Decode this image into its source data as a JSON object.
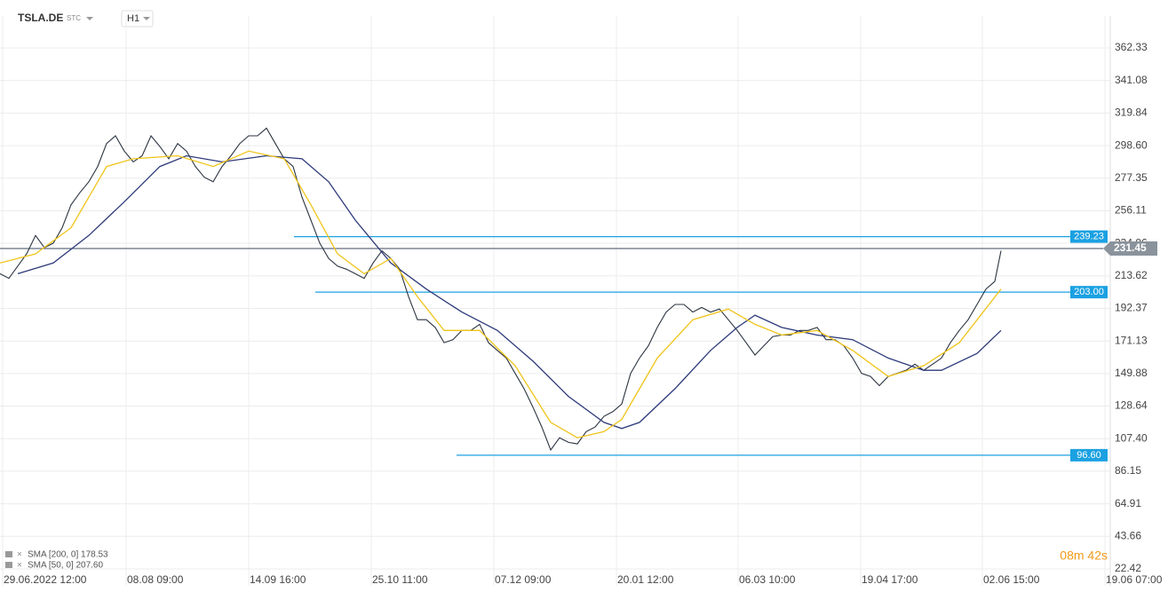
{
  "chart_data": {
    "type": "line",
    "symbol": "TSLA.DE",
    "market": "STC",
    "interval": "H1",
    "timer": "08m 42s",
    "xlim": [
      0,
      125
    ],
    "xticks": [
      {
        "value": 0.3,
        "label": "29.06.2022 12:00"
      },
      {
        "value": 14.2,
        "label": "08.08 09:00"
      },
      {
        "value": 28,
        "label": "14.09 16:00"
      },
      {
        "value": 41.8,
        "label": "25.10 11:00"
      },
      {
        "value": 55.6,
        "label": "07.12 09:00"
      },
      {
        "value": 69.4,
        "label": "20.01 12:00"
      },
      {
        "value": 83.1,
        "label": "06.03 10:00"
      },
      {
        "value": 96.9,
        "label": "19.04 17:00"
      },
      {
        "value": 110.6,
        "label": "02.06 15:00"
      },
      {
        "value": 124.4,
        "label": "19.06 07:00"
      }
    ],
    "ylim": [
      11.4,
      383.2
    ],
    "yticks": [
      22.42,
      43.66,
      64.91,
      86.15,
      {
        "value": 107.4,
        "label": "107.40"
      },
      128.64,
      149.88,
      171.13,
      192.37,
      213.62,
      234.86,
      256.11,
      277.35,
      {
        "value": 298.6,
        "label": "298.60"
      },
      319.84,
      341.08,
      362.33
    ],
    "grid": true,
    "series": [
      {
        "name": "TSLA.DE",
        "color": "#2b3440",
        "x": [
          0,
          1,
          2,
          3,
          4,
          5,
          6,
          7,
          8,
          9,
          10,
          11,
          12,
          13,
          14,
          15,
          16,
          17,
          18,
          19,
          20,
          21,
          22,
          23,
          24,
          25,
          26,
          27,
          28,
          29,
          30,
          31,
          32,
          33,
          34,
          35,
          36,
          37,
          38,
          39,
          40,
          41,
          42,
          43,
          44,
          45,
          46,
          47,
          48,
          49,
          50,
          51,
          52,
          53,
          54,
          55,
          56,
          57,
          58,
          59,
          60,
          61,
          62,
          63,
          64,
          65,
          66,
          67,
          68,
          69,
          70,
          71,
          72,
          73,
          74,
          75,
          76,
          77,
          78,
          79,
          80,
          81,
          82,
          83,
          84,
          85,
          86,
          87,
          88,
          89,
          90,
          91,
          92,
          93,
          94,
          95,
          96,
          97,
          98,
          99,
          100,
          101,
          102,
          103,
          104,
          105,
          106,
          107,
          108,
          109,
          110,
          111,
          112,
          112.7
        ],
        "values": [
          215,
          212,
          220,
          228,
          240,
          232,
          235,
          245,
          260,
          268,
          275,
          285,
          300,
          305,
          295,
          288,
          292,
          305,
          298,
          290,
          300,
          295,
          285,
          278,
          275,
          285,
          292,
          300,
          305,
          305,
          310,
          300,
          290,
          285,
          265,
          250,
          235,
          225,
          220,
          218,
          215,
          212,
          222,
          230,
          225,
          218,
          200,
          185,
          185,
          180,
          170,
          172,
          178,
          178,
          182,
          170,
          165,
          160,
          150,
          140,
          128,
          115,
          100,
          108,
          105,
          104,
          112,
          115,
          122,
          125,
          130,
          150,
          160,
          168,
          180,
          190,
          195,
          195,
          190,
          193,
          190,
          192,
          185,
          178,
          170,
          162,
          168,
          174,
          175,
          175,
          178,
          178,
          180,
          172,
          172,
          168,
          160,
          150,
          148,
          142,
          148,
          150,
          152,
          156,
          152,
          156,
          160,
          170,
          178,
          185,
          195,
          205,
          210,
          230
        ]
      },
      {
        "name": "SMA [200, 0] 178.53",
        "color": "#2d3a7a",
        "x": [
          2,
          6,
          10,
          14,
          18,
          21,
          25,
          30,
          34,
          37,
          40,
          44,
          48,
          52,
          56,
          60,
          64,
          68,
          70,
          72,
          76,
          80,
          83,
          85,
          88,
          92,
          96,
          100,
          104,
          106,
          110,
          112.7
        ],
        "values": [
          215,
          222,
          240,
          262,
          285,
          292,
          288,
          292,
          290,
          275,
          250,
          222,
          205,
          190,
          178,
          158,
          135,
          118,
          114,
          118,
          140,
          165,
          180,
          188,
          180,
          175,
          172,
          160,
          152,
          152,
          163,
          178
        ]
      },
      {
        "name": "SMA [50, 0] 207.60",
        "color": "#f0c419",
        "x": [
          0,
          4,
          8,
          12,
          15,
          20,
          24,
          28,
          32,
          35,
          38,
          41,
          44,
          47,
          50,
          54,
          58,
          62,
          65,
          68,
          70,
          74,
          78,
          82,
          85,
          88,
          92,
          96,
          100,
          104,
          108,
          112.7
        ],
        "values": [
          222,
          228,
          245,
          285,
          290,
          292,
          285,
          295,
          290,
          260,
          228,
          215,
          225,
          200,
          178,
          178,
          155,
          118,
          108,
          112,
          120,
          160,
          185,
          192,
          182,
          175,
          178,
          165,
          148,
          155,
          170,
          205
        ]
      }
    ],
    "levels": [
      {
        "value": 239.23,
        "label": "239.23"
      },
      {
        "value": 203,
        "label": "203.00"
      },
      {
        "value": 96.6,
        "label": "96.60"
      }
    ],
    "last_price": {
      "value": 231.45,
      "label": "231.45"
    }
  }
}
